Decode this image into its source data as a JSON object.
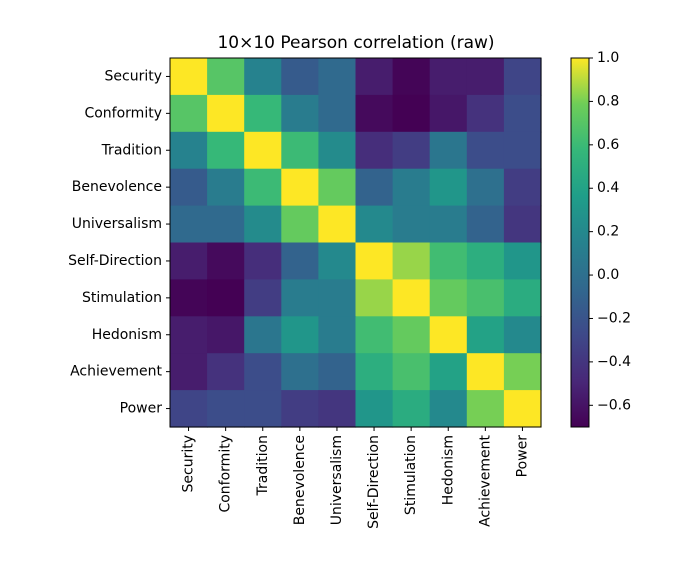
{
  "chart_data": {
    "type": "heatmap",
    "title": "10×10 Pearson correlation (raw)",
    "row_labels": [
      "Security",
      "Conformity",
      "Tradition",
      "Benevolence",
      "Universalism",
      "Self-Direction",
      "Stimulation",
      "Hedonism",
      "Achievement",
      "Power"
    ],
    "col_labels": [
      "Security",
      "Conformity",
      "Tradition",
      "Benevolence",
      "Universalism",
      "Self-Direction",
      "Stimulation",
      "Hedonism",
      "Achievement",
      "Power"
    ],
    "values": [
      [
        1.0,
        0.7,
        0.15,
        -0.15,
        -0.05,
        -0.55,
        -0.68,
        -0.55,
        -0.55,
        -0.3
      ],
      [
        0.7,
        1.0,
        0.58,
        0.1,
        -0.05,
        -0.65,
        -0.7,
        -0.58,
        -0.42,
        -0.25
      ],
      [
        0.15,
        0.58,
        1.0,
        0.6,
        0.22,
        -0.45,
        -0.35,
        0.05,
        -0.25,
        -0.25
      ],
      [
        -0.15,
        0.1,
        0.6,
        1.0,
        0.75,
        -0.1,
        0.1,
        0.3,
        0.0,
        -0.35
      ],
      [
        -0.05,
        -0.05,
        0.22,
        0.75,
        1.0,
        0.2,
        0.1,
        0.1,
        -0.1,
        -0.4
      ],
      [
        -0.55,
        -0.65,
        -0.45,
        -0.1,
        0.2,
        1.0,
        0.85,
        0.62,
        0.5,
        0.3
      ],
      [
        -0.68,
        -0.7,
        -0.35,
        0.1,
        0.1,
        0.85,
        1.0,
        0.75,
        0.65,
        0.48
      ],
      [
        -0.55,
        -0.58,
        0.05,
        0.3,
        0.1,
        0.62,
        0.75,
        1.0,
        0.4,
        0.2
      ],
      [
        -0.55,
        -0.42,
        -0.25,
        0.0,
        -0.1,
        0.5,
        0.65,
        0.4,
        1.0,
        0.8
      ],
      [
        -0.3,
        -0.25,
        -0.25,
        -0.35,
        -0.4,
        0.3,
        0.48,
        0.2,
        0.8,
        1.0
      ]
    ],
    "colormap": "viridis",
    "vmin": -0.7,
    "vmax": 1.0,
    "colorbar_ticks": [
      1.0,
      0.8,
      0.6,
      0.4,
      0.2,
      0.0,
      -0.2,
      -0.4,
      -0.6
    ],
    "colorbar_tick_labels": [
      "1.0",
      "0.8",
      "0.6",
      "0.4",
      "0.2",
      "0.0",
      "−0.2",
      "−0.4",
      "−0.6"
    ]
  }
}
